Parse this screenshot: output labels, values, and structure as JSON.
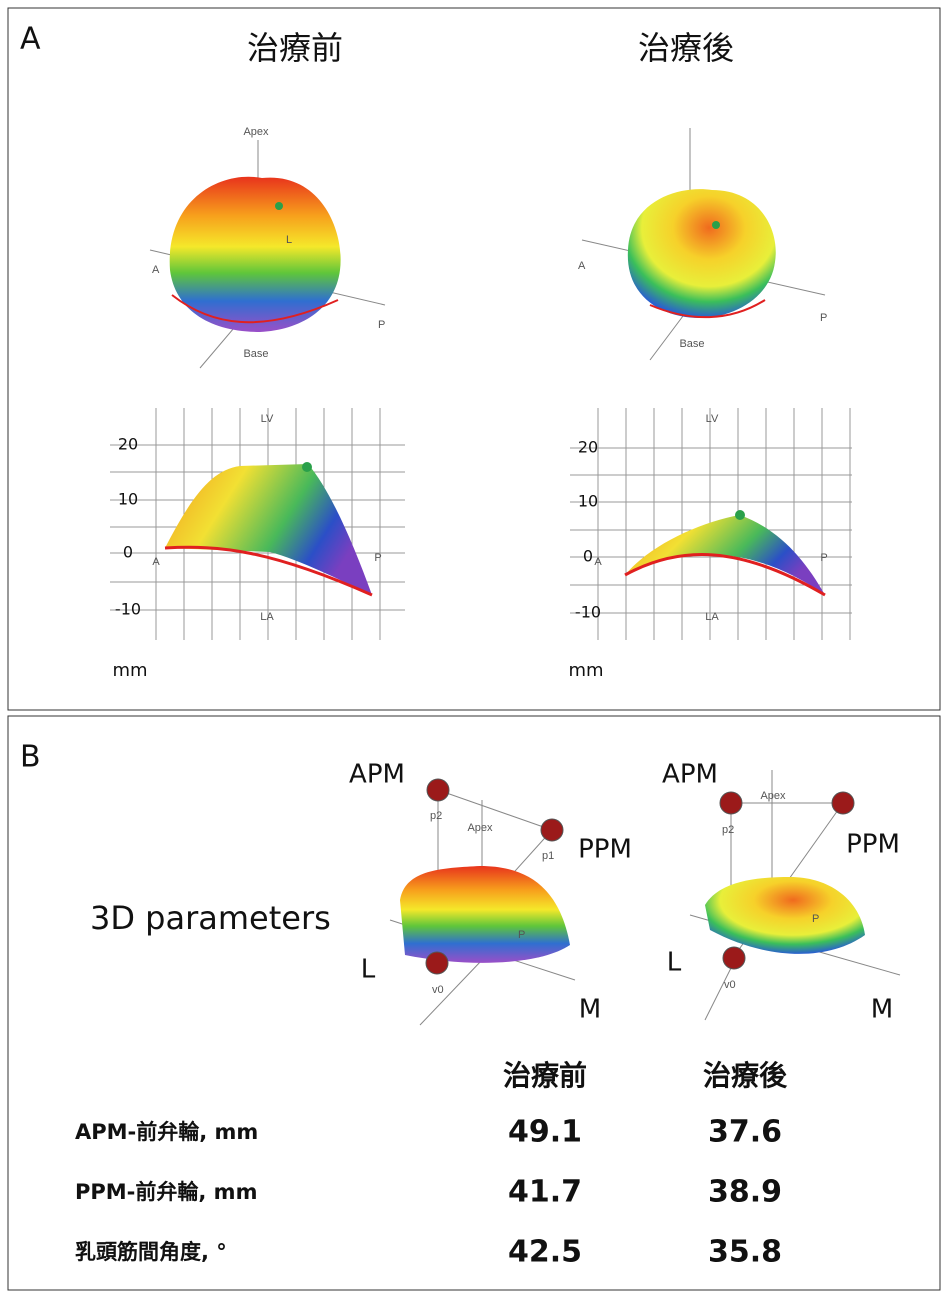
{
  "panel_a": {
    "label": "A",
    "columns": [
      {
        "title": "治療前",
        "view3d": {
          "apex": "Apex",
          "base": "Base",
          "a": "A",
          "p": "P",
          "l": "L"
        },
        "plot": {
          "yticks": [
            20,
            10,
            0,
            -10
          ],
          "lv": "LV",
          "la": "LA",
          "a": "A",
          "p": "P",
          "unit": "mm"
        }
      },
      {
        "title": "治療後",
        "view3d": {
          "base": "Base",
          "a": "A",
          "p": "P"
        },
        "plot": {
          "yticks": [
            20,
            10,
            0,
            -10
          ],
          "lv": "LV",
          "la": "LA",
          "a": "A",
          "p": "P",
          "unit": "mm"
        }
      }
    ]
  },
  "panel_b": {
    "label": "B",
    "subtitle": "3D parameters",
    "views": [
      {
        "apm": "APM",
        "ppm": "PPM",
        "l": "L",
        "m": "M",
        "apex": "Apex",
        "p": "P",
        "p1": "p1",
        "p2": "p2",
        "v0": "v0"
      },
      {
        "apm": "APM",
        "ppm": "PPM",
        "l": "L",
        "m": "M",
        "apex": "Apex",
        "p": "P",
        "p2": "p2",
        "v0": "v0"
      }
    ],
    "table": {
      "columns": [
        "治療前",
        "治療後"
      ],
      "rows": [
        {
          "label": "APM-前弁輪, mm",
          "values": [
            49.1,
            37.6
          ]
        },
        {
          "label": "PPM-前弁輪, mm",
          "values": [
            41.7,
            38.9
          ]
        },
        {
          "label": "乳頭筋間角度, °",
          "values": [
            42.5,
            35.8
          ]
        }
      ]
    }
  }
}
